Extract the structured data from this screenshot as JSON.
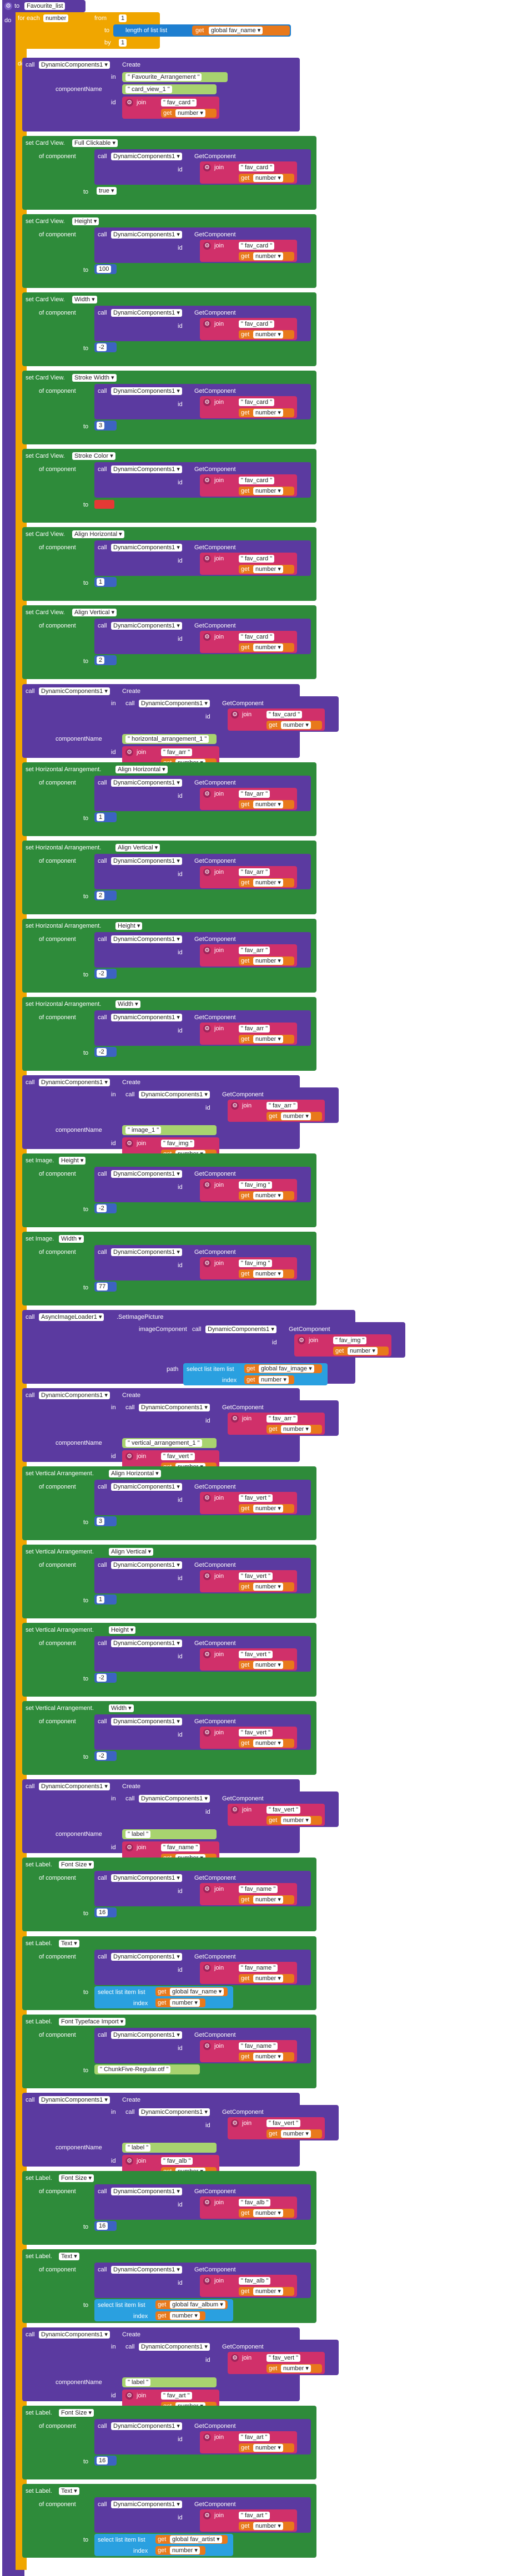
{
  "procedure": {
    "to_label": "to",
    "name": "Favourite_list",
    "do_label": "do"
  },
  "loop": {
    "for_each_label": "for each",
    "var_name": "number",
    "from_label": "from",
    "from_value": "1",
    "to_label": "to",
    "length_label": "length of list  list",
    "get_label": "get",
    "list_var": "global fav_name",
    "by_label": "by",
    "by_value": "1",
    "do_label": "do"
  },
  "labels": {
    "call": "call",
    "create": "Create",
    "in": "in",
    "component_name": "componentName",
    "id": "id",
    "join": "join",
    "get": "get",
    "number": "number",
    "set": "set",
    "of_component": "of component",
    "to": "to",
    "get_component": "GetComponent",
    "component_set": "DynamicComponents1",
    "path": "path",
    "index": "index",
    "select_list": "select list item  list",
    "image_component": "imageComponent",
    "set_image_picture": "SetImagePicture",
    "async_loader": "AsyncImageLoader1"
  },
  "blocks": [
    {
      "kind": "create",
      "in_text": "Favourite_Arrangement",
      "name": "card_view_1",
      "id_text": "fav_card"
    },
    {
      "kind": "setprop",
      "comp": "Card View",
      "prop": "Full Clickable",
      "id_text": "fav_card",
      "value": "true",
      "vtype": "bool"
    },
    {
      "kind": "setprop",
      "comp": "Card View",
      "prop": "Height",
      "id_text": "fav_card",
      "value": "100",
      "vtype": "num"
    },
    {
      "kind": "setprop",
      "comp": "Card View",
      "prop": "Width",
      "id_text": "fav_card",
      "value": "-2",
      "vtype": "num"
    },
    {
      "kind": "setprop",
      "comp": "Card View",
      "prop": "Stroke Width",
      "id_text": "fav_card",
      "value": "3",
      "vtype": "num"
    },
    {
      "kind": "setprop",
      "comp": "Card View",
      "prop": "Stroke Color",
      "id_text": "fav_card",
      "value": "",
      "vtype": "color"
    },
    {
      "kind": "setprop",
      "comp": "Card View",
      "prop": "Align Horizontal",
      "id_text": "fav_card",
      "value": "1",
      "vtype": "num"
    },
    {
      "kind": "setprop",
      "comp": "Card View",
      "prop": "Align Vertical",
      "id_text": "fav_card",
      "value": "2",
      "vtype": "num"
    },
    {
      "kind": "create2",
      "in_id": "fav_card",
      "name": "horizontal_arrangement_1",
      "id_text": "fav_arr"
    },
    {
      "kind": "setprop",
      "comp": "Horizontal Arrangement",
      "prop": "Align Horizontal",
      "id_text": "fav_arr",
      "value": "1",
      "vtype": "num"
    },
    {
      "kind": "setprop",
      "comp": "Horizontal Arrangement",
      "prop": "Align Vertical",
      "id_text": "fav_arr",
      "value": "2",
      "vtype": "num"
    },
    {
      "kind": "setprop",
      "comp": "Horizontal Arrangement",
      "prop": "Height",
      "id_text": "fav_arr",
      "value": "-2",
      "vtype": "num"
    },
    {
      "kind": "setprop",
      "comp": "Horizontal Arrangement",
      "prop": "Width",
      "id_text": "fav_arr",
      "value": "-2",
      "vtype": "num"
    },
    {
      "kind": "create2",
      "in_id": "fav_arr",
      "name": "image_1",
      "id_text": "fav_img"
    },
    {
      "kind": "setprop",
      "comp": "Image",
      "prop": "Height",
      "id_text": "fav_img",
      "value": "-2",
      "vtype": "num"
    },
    {
      "kind": "setprop",
      "comp": "Image",
      "prop": "Width",
      "id_text": "fav_img",
      "value": "77",
      "vtype": "num"
    },
    {
      "kind": "async",
      "id_text": "fav_img",
      "list_var": "global fav_image"
    },
    {
      "kind": "create2",
      "in_id": "fav_arr",
      "name": "vertical_arrangement_1",
      "id_text": "fav_vert"
    },
    {
      "kind": "setprop",
      "comp": "Vertical Arrangement",
      "prop": "Align Horizontal",
      "id_text": "fav_vert",
      "value": "3",
      "vtype": "num"
    },
    {
      "kind": "setprop",
      "comp": "Vertical Arrangement",
      "prop": "Align Vertical",
      "id_text": "fav_vert",
      "value": "1",
      "vtype": "num"
    },
    {
      "kind": "setprop",
      "comp": "Vertical Arrangement",
      "prop": "Height",
      "id_text": "fav_vert",
      "value": "-2",
      "vtype": "num"
    },
    {
      "kind": "setprop",
      "comp": "Vertical Arrangement",
      "prop": "Width",
      "id_text": "fav_vert",
      "value": "-2",
      "vtype": "num"
    },
    {
      "kind": "create2",
      "in_id": "fav_vert",
      "name": "label",
      "id_text": "fav_name"
    },
    {
      "kind": "setprop",
      "comp": "Label",
      "prop": "Font Size",
      "id_text": "fav_name",
      "value": "16",
      "vtype": "num"
    },
    {
      "kind": "settext",
      "comp": "Label",
      "prop": "Text",
      "id_text": "fav_name",
      "list_var": "global fav_name"
    },
    {
      "kind": "setprop",
      "comp": "Label",
      "prop": "Font Typeface Import",
      "id_text": "fav_name",
      "value": "ChunkFive-Regular.otf",
      "vtype": "text"
    },
    {
      "kind": "create2",
      "in_id": "fav_vert",
      "name": "label",
      "id_text": "fav_alb"
    },
    {
      "kind": "setprop",
      "comp": "Label",
      "prop": "Font Size",
      "id_text": "fav_alb",
      "value": "16",
      "vtype": "num"
    },
    {
      "kind": "settext",
      "comp": "Label",
      "prop": "Text",
      "id_text": "fav_alb",
      "list_var": "global fav_album"
    },
    {
      "kind": "create2",
      "in_id": "fav_vert",
      "name": "label",
      "id_text": "fav_art"
    },
    {
      "kind": "setprop",
      "comp": "Label",
      "prop": "Font Size",
      "id_text": "fav_art",
      "value": "16",
      "vtype": "num"
    },
    {
      "kind": "settext",
      "comp": "Label",
      "prop": "Text",
      "id_text": "fav_art",
      "list_var": "global fav_artist"
    }
  ]
}
